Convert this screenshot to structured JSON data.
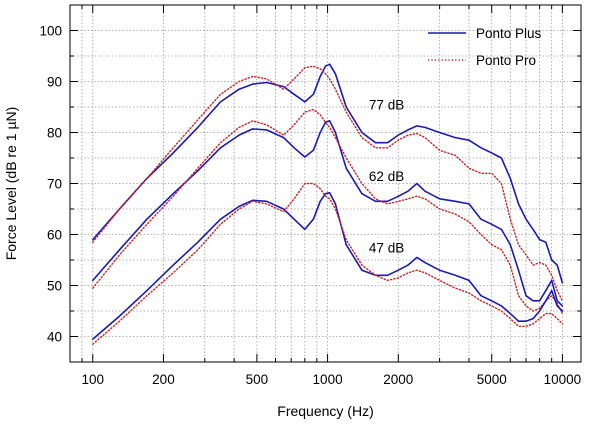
{
  "chart_data": {
    "type": "line",
    "xscale": "log",
    "xlabel": "Frequency (Hz)",
    "ylabel": "Force Level (dB re 1 µN)",
    "xlim": [
      80,
      12000
    ],
    "ylim": [
      35,
      105
    ],
    "grid": true,
    "legend_position": "top-right",
    "x_ticks": [
      {
        "value": 100,
        "label": "100"
      },
      {
        "value": 200,
        "label": "200"
      },
      {
        "value": 500,
        "label": "500"
      },
      {
        "value": 1000,
        "label": "1000"
      },
      {
        "value": 2000,
        "label": "2000"
      },
      {
        "value": 5000,
        "label": "5000"
      },
      {
        "value": 10000,
        "label": "10000"
      }
    ],
    "y_ticks": [
      {
        "value": 40,
        "label": "40"
      },
      {
        "value": 50,
        "label": "50"
      },
      {
        "value": 60,
        "label": "60"
      },
      {
        "value": 70,
        "label": "70"
      },
      {
        "value": 80,
        "label": "80"
      },
      {
        "value": 90,
        "label": "90"
      },
      {
        "value": 100,
        "label": "100"
      }
    ],
    "legend": [
      {
        "name": "Ponto Plus",
        "color": "#1a1ab4",
        "style": "solid"
      },
      {
        "name": "Ponto Pro",
        "color": "#cc2222",
        "style": "dotted"
      }
    ],
    "annotations": [
      {
        "text": "77 dB",
        "x": 1500,
        "y": 84.5
      },
      {
        "text": "62 dB",
        "x": 1500,
        "y": 70.5
      },
      {
        "text": "47 dB",
        "x": 1500,
        "y": 56.5
      }
    ],
    "series": [
      {
        "name": "Ponto Plus 77 dB",
        "legend": "Ponto Plus",
        "level": "77 dB",
        "color": "#1a1ab4",
        "style": "solid",
        "x": [
          100,
          130,
          170,
          220,
          280,
          350,
          420,
          480,
          550,
          650,
          720,
          800,
          870,
          930,
          980,
          1020,
          1080,
          1200,
          1400,
          1600,
          1800,
          2000,
          2200,
          2400,
          2600,
          3000,
          3500,
          4000,
          4500,
          5000,
          5500,
          6000,
          6500,
          7000,
          7500,
          8000,
          8500,
          9000,
          9500,
          10000
        ],
        "y": [
          59,
          65,
          71,
          76,
          81,
          86,
          88.5,
          89.5,
          89.8,
          89,
          87.5,
          86,
          87.5,
          91,
          93,
          93.4,
          91.5,
          85,
          80,
          78,
          78,
          79.5,
          80.5,
          81.3,
          81,
          80,
          79,
          78.5,
          77,
          76,
          75,
          71,
          66,
          63,
          61,
          59,
          58.5,
          55,
          54,
          50.5
        ]
      },
      {
        "name": "Ponto Pro 77 dB",
        "legend": "Ponto Pro",
        "level": "77 dB",
        "color": "#cc2222",
        "style": "dotted",
        "x": [
          100,
          130,
          170,
          220,
          280,
          350,
          420,
          480,
          550,
          650,
          720,
          800,
          870,
          930,
          980,
          1020,
          1080,
          1200,
          1400,
          1600,
          1800,
          2000,
          2200,
          2400,
          2600,
          3000,
          3500,
          4000,
          4500,
          5000,
          5500,
          6000,
          6500,
          7000,
          7500,
          8000,
          8500,
          9000,
          9500,
          10000
        ],
        "y": [
          58.5,
          65,
          71,
          77,
          82.5,
          87.5,
          90,
          91,
          90.5,
          88.5,
          90.5,
          92.7,
          93,
          92.5,
          91.5,
          90.5,
          88.5,
          84,
          79,
          77,
          77,
          78.5,
          79.5,
          79.8,
          79,
          76.5,
          75.5,
          73,
          72,
          72,
          70,
          63,
          58,
          56,
          54,
          54.5,
          54,
          52,
          49,
          47
        ]
      },
      {
        "name": "Ponto Plus 62 dB",
        "legend": "Ponto Plus",
        "level": "62 dB",
        "color": "#1a1ab4",
        "style": "solid",
        "x": [
          100,
          130,
          170,
          220,
          280,
          350,
          420,
          480,
          550,
          650,
          720,
          800,
          870,
          930,
          980,
          1020,
          1080,
          1200,
          1400,
          1600,
          1800,
          2000,
          2200,
          2400,
          2600,
          3000,
          3500,
          4000,
          4500,
          5000,
          5500,
          6000,
          6500,
          7000,
          7500,
          8000,
          8500,
          9000,
          9500,
          10000
        ],
        "y": [
          51,
          57,
          63,
          68,
          72.5,
          77,
          79.5,
          80.7,
          80.5,
          79,
          77,
          75.2,
          76.5,
          80,
          82,
          82.3,
          80,
          73,
          68,
          66.5,
          66.5,
          67.5,
          68.5,
          70,
          68.5,
          67,
          66.5,
          66,
          63,
          62,
          61,
          58,
          53,
          48,
          47,
          47,
          49,
          51,
          47,
          46
        ]
      },
      {
        "name": "Ponto Pro 62 dB",
        "legend": "Ponto Pro",
        "level": "62 dB",
        "color": "#cc2222",
        "style": "dotted",
        "x": [
          100,
          130,
          170,
          220,
          280,
          350,
          420,
          480,
          550,
          650,
          720,
          800,
          870,
          930,
          980,
          1020,
          1080,
          1200,
          1400,
          1600,
          1800,
          2000,
          2200,
          2400,
          2600,
          3000,
          3500,
          4000,
          4500,
          5000,
          5500,
          6000,
          6500,
          7000,
          7500,
          8000,
          8500,
          9000,
          9500,
          10000
        ],
        "y": [
          49.5,
          56,
          62,
          67.5,
          73,
          78,
          81,
          82.3,
          81.5,
          79.5,
          81.5,
          84,
          84.5,
          83.5,
          82,
          81,
          79,
          75,
          70,
          67,
          66,
          66.5,
          67,
          67.5,
          67,
          65,
          64,
          62.5,
          60,
          58,
          57,
          54,
          48,
          46,
          45,
          45.5,
          47,
          48,
          46.5,
          44.5
        ]
      },
      {
        "name": "Ponto Plus 47 dB",
        "legend": "Ponto Plus",
        "level": "47 dB",
        "color": "#1a1ab4",
        "style": "solid",
        "x": [
          100,
          130,
          170,
          220,
          280,
          350,
          420,
          480,
          550,
          650,
          720,
          800,
          870,
          930,
          980,
          1020,
          1080,
          1200,
          1400,
          1600,
          1800,
          2000,
          2200,
          2400,
          2600,
          3000,
          3500,
          4000,
          4500,
          5000,
          5500,
          6000,
          6500,
          7000,
          7500,
          8000,
          8500,
          9000,
          9500,
          10000
        ],
        "y": [
          39.5,
          44,
          49,
          54,
          58.5,
          63,
          65.5,
          66.7,
          66.5,
          65,
          63,
          61,
          63,
          66.5,
          68,
          68.2,
          66,
          58,
          53,
          52,
          52,
          53,
          54,
          55.5,
          54.5,
          53,
          52,
          51,
          48,
          47,
          46,
          44.5,
          43,
          43,
          43.5,
          45,
          47,
          49,
          46,
          45
        ]
      },
      {
        "name": "Ponto Pro 47 dB",
        "legend": "Ponto Pro",
        "level": "47 dB",
        "color": "#cc2222",
        "style": "dotted",
        "x": [
          100,
          130,
          170,
          220,
          280,
          350,
          420,
          480,
          550,
          650,
          720,
          800,
          870,
          930,
          980,
          1020,
          1080,
          1200,
          1400,
          1600,
          1800,
          2000,
          2200,
          2400,
          2600,
          3000,
          3500,
          4000,
          4500,
          5000,
          5500,
          6000,
          6500,
          7000,
          7500,
          8000,
          8500,
          9000,
          9500,
          10000
        ],
        "y": [
          38.5,
          43,
          48,
          52.5,
          57,
          62,
          65,
          66.5,
          66,
          64.5,
          67,
          70,
          70,
          69,
          67.5,
          67,
          65,
          59,
          54,
          52,
          51,
          51.5,
          52.5,
          53,
          52.5,
          51,
          49.5,
          48.5,
          47,
          46,
          45,
          43.5,
          42,
          42,
          42.5,
          43.5,
          44.5,
          44.5,
          43.5,
          42.5
        ]
      }
    ]
  }
}
